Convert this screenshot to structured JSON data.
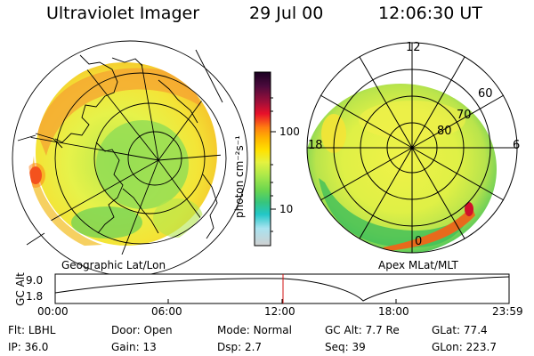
{
  "header": {
    "instrument": "Ultraviolet Imager",
    "date": "29 Jul 00",
    "time": "12:06:30 UT"
  },
  "panels": {
    "left_caption": "Geographic Lat/Lon",
    "right_caption": "Apex MLat/MLT",
    "right_ring_labels": [
      "60",
      "70",
      "80"
    ],
    "right_mlt_labels": {
      "top": "12",
      "left": "18",
      "right": "6",
      "bottom": "0"
    }
  },
  "colorbar": {
    "label": "photon cm⁻²s⁻¹",
    "ticks": [
      "100",
      "10"
    ],
    "colors": [
      "#1a0021",
      "#4b0a3c",
      "#9d0f3a",
      "#e8102a",
      "#ff7e10",
      "#ffb400",
      "#ffe100",
      "#e4f240",
      "#a8e84a",
      "#6bd64f",
      "#37c57c",
      "#22c7c8",
      "#a9e3f0",
      "#d0d0d0"
    ]
  },
  "altitude_plot": {
    "ylabel": "GC Alt",
    "yticks": [
      "9.0",
      "1.8"
    ],
    "xticks": [
      "00:00",
      "06:00",
      "12:00",
      "18:00",
      "23:59"
    ]
  },
  "info": {
    "row1": [
      {
        "label": "Flt:",
        "value": "LBHL"
      },
      {
        "label": "Door:",
        "value": "Open"
      },
      {
        "label": "Mode:",
        "value": "Normal"
      },
      {
        "label": "GC Alt:",
        "value": "7.7 Re"
      },
      {
        "label": "GLat:",
        "value": "77.4"
      }
    ],
    "row2": [
      {
        "label": "IP:",
        "value": "36.0"
      },
      {
        "label": "Gain:",
        "value": "13"
      },
      {
        "label": "Dsp:",
        "value": "2.7"
      },
      {
        "label": "Seq:",
        "value": "39"
      },
      {
        "label": "GLon:",
        "value": "223.7"
      }
    ]
  }
}
